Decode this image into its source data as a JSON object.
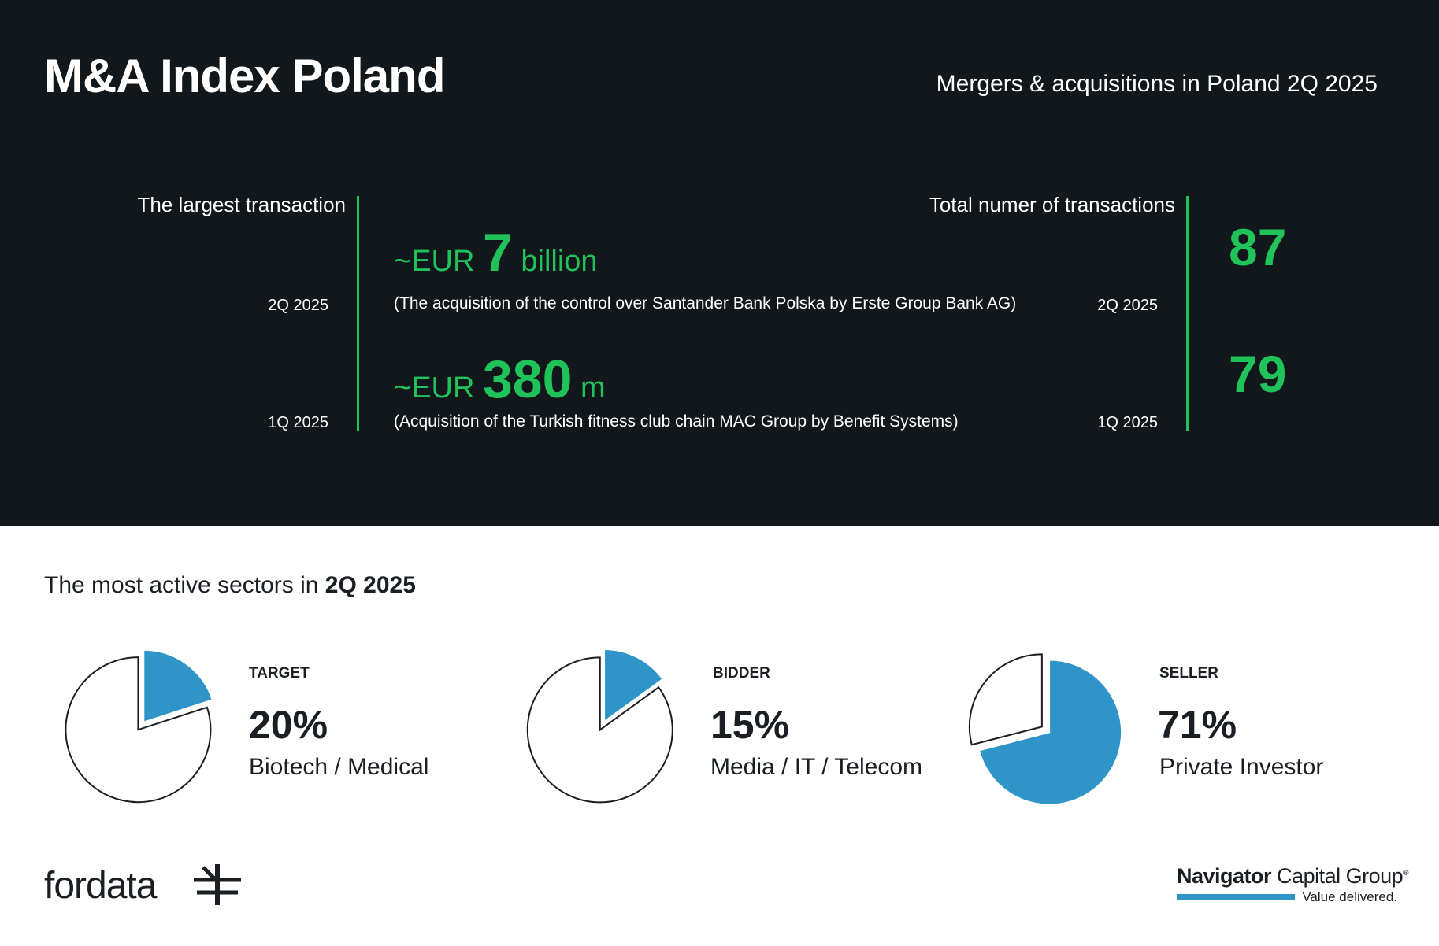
{
  "header": {
    "title": "M&A Index Poland",
    "subtitle": "Mergers & acquisitions in Poland 2Q 2025"
  },
  "largest_transaction": {
    "label": "The largest transaction",
    "rows": [
      {
        "quarter": "2Q 2025",
        "prefix": "~EUR",
        "value": "7",
        "unit": "billion",
        "description": "(The acquisition of the control over Santander Bank Polska by Erste Group Bank AG)"
      },
      {
        "quarter": "1Q 2025",
        "prefix": "~EUR",
        "value": "380",
        "unit": "m",
        "description": "(Acquisition of the Turkish fitness club chain MAC Group by Benefit Systems)"
      }
    ]
  },
  "total_transactions": {
    "label": "Total numer of transactions",
    "rows": [
      {
        "quarter": "2Q 2025",
        "value": "87"
      },
      {
        "quarter": "1Q 2025",
        "value": "79"
      }
    ]
  },
  "sectors": {
    "title_prefix": "The most active sectors in ",
    "title_bold": "2Q 2025"
  },
  "chart_data": [
    {
      "type": "pie",
      "title": "TARGET",
      "label": "Biotech / Medical",
      "value_text": "20%",
      "slices": [
        {
          "name": "Biotech / Medical",
          "value": 20
        },
        {
          "name": "Other",
          "value": 80
        }
      ]
    },
    {
      "type": "pie",
      "title": "BIDDER",
      "label": "Media / IT / Telecom",
      "value_text": "15%",
      "slices": [
        {
          "name": "Media / IT / Telecom",
          "value": 15
        },
        {
          "name": "Other",
          "value": 85
        }
      ]
    },
    {
      "type": "pie",
      "title": "SELLER",
      "label": "Private Investor",
      "value_text": "71%",
      "slices": [
        {
          "name": "Private Investor",
          "value": 71
        },
        {
          "name": "Other",
          "value": 29
        }
      ]
    }
  ],
  "footer": {
    "left_logo": "fordata",
    "right_logo_bold": "Navigator",
    "right_logo_rest": " Capital Group",
    "right_logo_mark": "®",
    "right_tagline": "Value delivered."
  },
  "colors": {
    "dark_bg": "#12171b",
    "accent_green": "#1fc35a",
    "pie_blue": "#2f95c9"
  }
}
